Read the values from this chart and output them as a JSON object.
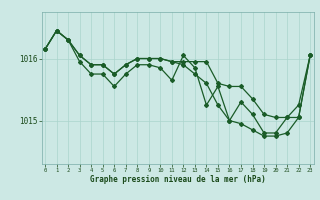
{
  "x": [
    0,
    1,
    2,
    3,
    4,
    5,
    6,
    7,
    8,
    9,
    10,
    11,
    12,
    13,
    14,
    15,
    16,
    17,
    18,
    19,
    20,
    21,
    22,
    23
  ],
  "line_zigzag": [
    1016.15,
    1016.45,
    1016.3,
    1015.95,
    1015.75,
    1015.75,
    1015.55,
    1015.75,
    1015.9,
    1015.9,
    1015.85,
    1015.65,
    1016.05,
    1015.85,
    1015.25,
    1015.55,
    1015.0,
    1015.3,
    1015.1,
    1014.8,
    1014.8,
    1015.05,
    1015.25,
    1016.05
  ],
  "line_smooth1": [
    1016.15,
    1016.45,
    1016.3,
    1016.05,
    1015.9,
    1015.9,
    1015.75,
    1015.9,
    1016.0,
    1016.0,
    1016.0,
    1015.95,
    1015.95,
    1015.95,
    1015.95,
    1015.6,
    1015.55,
    1015.55,
    1015.35,
    1015.1,
    1015.05,
    1015.05,
    1015.05,
    1016.05
  ],
  "line_smooth2": [
    1016.15,
    1016.45,
    1016.3,
    1016.05,
    1015.9,
    1015.9,
    1015.75,
    1015.9,
    1016.0,
    1016.0,
    1016.0,
    1015.95,
    1015.9,
    1015.75,
    1015.6,
    1015.25,
    1015.0,
    1014.95,
    1014.85,
    1014.75,
    1014.75,
    1014.8,
    1015.05,
    1016.05
  ],
  "bg_color": "#cce8e4",
  "line_color": "#1a5c28",
  "grid_color": "#aad4cc",
  "title": "Graphe pression niveau de la mer (hPa)",
  "ylabel_ticks": [
    1015,
    1016
  ],
  "ylim": [
    1014.3,
    1016.75
  ],
  "xlim": [
    -0.3,
    23.3
  ]
}
